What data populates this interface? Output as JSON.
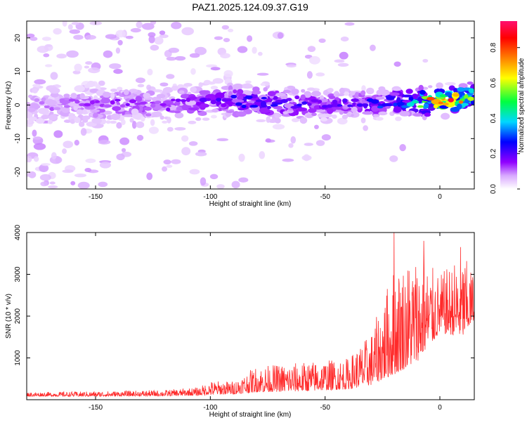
{
  "title": "PAZ1.2025.124.09.37.G19",
  "chart_data": [
    {
      "type": "heatmap",
      "xlabel": "Height of straight line (km)",
      "ylabel": "Frequency (Hz)",
      "xlim": [
        -180,
        15
      ],
      "ylim": [
        -25,
        25
      ],
      "xticks": [
        -150,
        -100,
        -50,
        0
      ],
      "yticks": [
        -20,
        -10,
        0,
        10,
        20
      ],
      "grid": false,
      "colorbar": {
        "label": "Normalized spectral amplitude",
        "range": [
          0,
          0.95
        ],
        "ticks": [
          0,
          0.2,
          0.4,
          0.6,
          0.8
        ],
        "colormap": [
          "#ffffff",
          "#b000ff",
          "#0000ff",
          "#00ffff",
          "#00ff00",
          "#ffff00",
          "#ff8000",
          "#ff0000",
          "#ff0080"
        ]
      },
      "ridge": [
        {
          "x": -180,
          "f": 0,
          "a": 0.08
        },
        {
          "x": -160,
          "f": 0,
          "a": 0.12
        },
        {
          "x": -140,
          "f": 0,
          "a": 0.15
        },
        {
          "x": -120,
          "f": 0,
          "a": 0.14
        },
        {
          "x": -100,
          "f": 1,
          "a": 0.18
        },
        {
          "x": -80,
          "f": 1,
          "a": 0.25
        },
        {
          "x": -60,
          "f": 0,
          "a": 0.22
        },
        {
          "x": -40,
          "f": 0,
          "a": 0.2
        },
        {
          "x": -20,
          "f": 1,
          "a": 0.3
        },
        {
          "x": -10,
          "f": 1,
          "a": 0.5
        },
        {
          "x": 0,
          "f": 1,
          "a": 0.85
        },
        {
          "x": 10,
          "f": 2,
          "a": 0.75
        },
        {
          "x": 15,
          "f": 3,
          "a": 0.6
        }
      ]
    },
    {
      "type": "line",
      "xlabel": "Height of straight line (km)",
      "ylabel": "SNR (10 * v/v)",
      "xlim": [
        -180,
        15
      ],
      "ylim": [
        0,
        4000
      ],
      "xticks": [
        -150,
        -100,
        -50,
        0
      ],
      "yticks": [
        1000,
        2000,
        3000,
        4000
      ],
      "color": "#ff2a2a",
      "envelope": [
        {
          "x": -180,
          "low": 80,
          "high": 180
        },
        {
          "x": -150,
          "low": 80,
          "high": 200
        },
        {
          "x": -120,
          "low": 90,
          "high": 230
        },
        {
          "x": -105,
          "low": 100,
          "high": 300
        },
        {
          "x": -100,
          "low": 120,
          "high": 450
        },
        {
          "x": -90,
          "low": 130,
          "high": 450
        },
        {
          "x": -80,
          "low": 180,
          "high": 800
        },
        {
          "x": -60,
          "low": 200,
          "high": 900
        },
        {
          "x": -40,
          "low": 250,
          "high": 1000
        },
        {
          "x": -30,
          "low": 350,
          "high": 1600
        },
        {
          "x": -20,
          "low": 600,
          "high": 3200
        },
        {
          "x": -10,
          "low": 900,
          "high": 3500
        },
        {
          "x": 0,
          "low": 1600,
          "high": 3000
        },
        {
          "x": 10,
          "low": 1500,
          "high": 3500
        },
        {
          "x": 15,
          "low": 1900,
          "high": 3000
        }
      ],
      "peaks": [
        {
          "x": -20,
          "y": 4000
        },
        {
          "x": -7,
          "y": 3800
        },
        {
          "x": 9,
          "y": 3650
        }
      ]
    }
  ]
}
